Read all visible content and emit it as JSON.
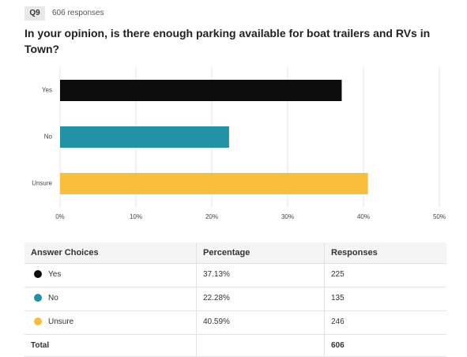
{
  "header": {
    "badge": "Q9",
    "responses": "606 responses"
  },
  "chart_data": {
    "type": "hbar",
    "title": "In your opinion, is there enough parking available for boat trailers and RVs in Town?",
    "categories": [
      "Yes",
      "No",
      "Unsure"
    ],
    "values": [
      37.13,
      22.28,
      40.59
    ],
    "colors": [
      "#0d0d0d",
      "#2191a6",
      "#f9be3e"
    ],
    "xlim": [
      0,
      50
    ],
    "xticks": [
      {
        "value": 0,
        "label": "0%"
      },
      {
        "value": 10,
        "label": "10%"
      },
      {
        "value": 20,
        "label": "20%"
      },
      {
        "value": 30,
        "label": "30%"
      },
      {
        "value": 40,
        "label": "40%"
      },
      {
        "value": 50,
        "label": "50%"
      }
    ],
    "grid": true
  },
  "table": {
    "columns": [
      "Answer Choices",
      "Percentage",
      "Responses"
    ],
    "rows": [
      [
        "Yes",
        "37.13%",
        225
      ],
      [
        "No",
        "22.28%",
        135
      ],
      [
        "Unsure",
        "40.59%",
        246
      ]
    ],
    "total": [
      "Total",
      606
    ]
  }
}
